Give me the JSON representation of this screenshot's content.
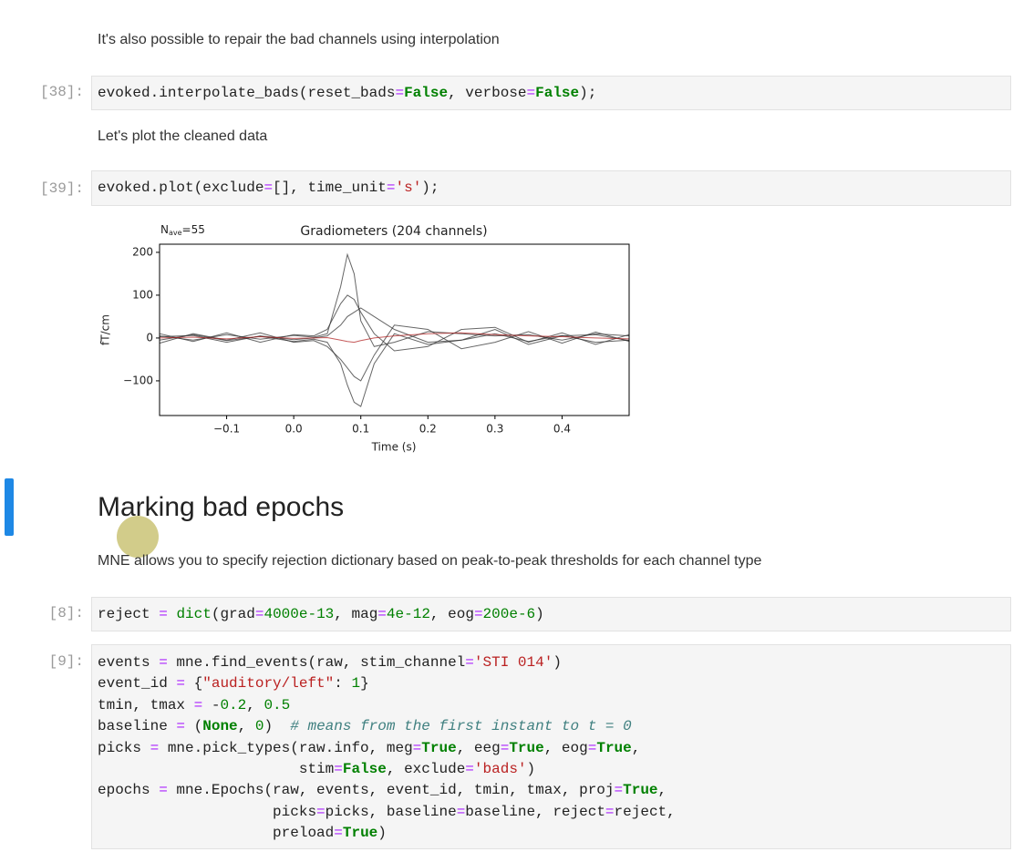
{
  "md_interp": "It's also possible to repair the bad channels using interpolation",
  "cell38": {
    "prompt": "[38]:",
    "lines": [
      "evoked.interpolate_bads(reset_bads=False, verbose=False);"
    ]
  },
  "md_plot": "Let's plot the cleaned data",
  "cell39": {
    "prompt": "[39]:",
    "lines": [
      "evoked.plot(exclude=[], time_unit='s');"
    ]
  },
  "chart_data": {
    "type": "line",
    "title": "Gradiometers (204 channels)",
    "nave": {
      "base": "N",
      "sub": "ave",
      "rest": "=55"
    },
    "xlabel": "Time (s)",
    "ylabel": "fT/cm",
    "x": [
      -0.2,
      -0.15,
      -0.1,
      -0.05,
      0,
      0.03,
      0.05,
      0.07,
      0.08,
      0.09,
      0.1,
      0.12,
      0.15,
      0.2,
      0.25,
      0.3,
      0.35,
      0.4,
      0.45,
      0.5
    ],
    "series": [
      {
        "color": "#333333",
        "values": [
          5,
          -5,
          8,
          -3,
          6,
          2,
          10,
          120,
          195,
          150,
          40,
          -20,
          -10,
          15,
          10,
          5,
          8,
          -5,
          10,
          5
        ]
      },
      {
        "color": "#333333",
        "values": [
          -5,
          8,
          -6,
          4,
          -8,
          -3,
          -10,
          -60,
          -110,
          -150,
          -160,
          -60,
          10,
          -15,
          -5,
          10,
          -8,
          6,
          -10,
          -5
        ]
      },
      {
        "color": "#333333",
        "values": [
          10,
          -8,
          12,
          -10,
          8,
          5,
          20,
          80,
          100,
          90,
          60,
          10,
          -30,
          -20,
          20,
          25,
          -10,
          12,
          -15,
          8
        ]
      },
      {
        "color": "#333333",
        "values": [
          -12,
          10,
          -5,
          12,
          -10,
          -6,
          -20,
          -50,
          -70,
          -90,
          -100,
          -40,
          30,
          20,
          -25,
          -10,
          15,
          -12,
          14,
          -8
        ]
      },
      {
        "color": "#333333",
        "values": [
          3,
          6,
          -10,
          5,
          -4,
          0,
          5,
          30,
          50,
          60,
          70,
          50,
          20,
          -10,
          -5,
          20,
          -15,
          5,
          8,
          -6
        ]
      },
      {
        "color": "#b22222",
        "values": [
          0,
          2,
          -2,
          3,
          -1,
          0,
          1,
          -5,
          -8,
          -10,
          -6,
          0,
          5,
          10,
          12,
          8,
          5,
          3,
          0,
          -2
        ]
      }
    ],
    "xlim": [
      -0.2,
      0.5
    ],
    "ylim": [
      -181,
      219
    ],
    "xticks": [
      {
        "value": -0.1,
        "label": "−0.1"
      },
      {
        "value": 0,
        "label": "0.0"
      },
      0.1,
      0.2,
      0.3,
      0.4
    ],
    "yticks": [
      {
        "value": -100,
        "label": "−100"
      },
      0,
      100,
      200
    ]
  },
  "heading": "Marking bad epochs",
  "md_reject": "MNE allows you to specify rejection dictionary based on peak-to-peak thresholds for each channel type",
  "cell8": {
    "prompt": "[8]:",
    "lines": [
      "reject = dict(grad=4000e-13, mag=4e-12, eog=200e-6)"
    ]
  },
  "cell9": {
    "prompt": "[9]:",
    "lines": [
      "events = mne.find_events(raw, stim_channel='STI 014')",
      "event_id = {\"auditory/left\": 1}",
      "tmin, tmax = -0.2, 0.5",
      "baseline = (None, 0)  # means from the first instant to t = 0",
      "picks = mne.pick_types(raw.info, meg=True, eeg=True, eog=True,",
      "                       stim=False, exclude='bads')",
      "epochs = mne.Epochs(raw, events, event_id, tmin, tmax, proj=True,",
      "                    picks=picks, baseline=baseline, reject=reject,",
      "                    preload=True)"
    ]
  }
}
